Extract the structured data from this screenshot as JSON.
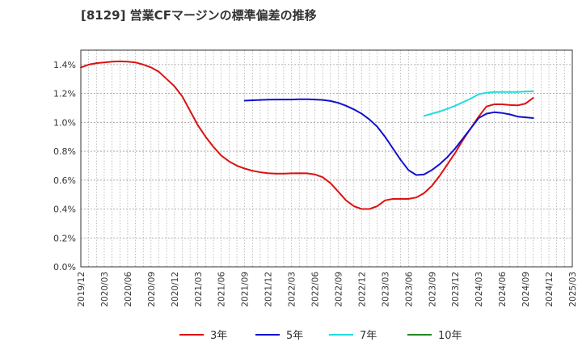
{
  "chart_data": {
    "type": "line",
    "title": "[8129]  営業CFマージンの標準偏差の推移",
    "xlabel": "",
    "ylabel": "",
    "ylim": [
      0.0,
      1.5
    ],
    "x_range": [
      "2019/12",
      "2025/03"
    ],
    "y_ticks": [
      "0.0%",
      "0.2%",
      "0.4%",
      "0.6%",
      "0.8%",
      "1.0%",
      "1.2%",
      "1.4%"
    ],
    "x_ticks": [
      "2019/12",
      "2020/03",
      "2020/06",
      "2020/09",
      "2020/12",
      "2021/03",
      "2021/06",
      "2021/09",
      "2021/12",
      "2022/03",
      "2022/06",
      "2022/09",
      "2022/12",
      "2023/03",
      "2023/06",
      "2023/09",
      "2023/12",
      "2024/03",
      "2024/06",
      "2024/09",
      "2024/12",
      "2025/03"
    ],
    "grid": true,
    "legend_position": "bottom",
    "series": [
      {
        "name": "3年",
        "color": "#dd1111",
        "points": [
          [
            "2019/12",
            1.38
          ],
          [
            "2020/01",
            1.4
          ],
          [
            "2020/02",
            1.41
          ],
          [
            "2020/03",
            1.415
          ],
          [
            "2020/04",
            1.42
          ],
          [
            "2020/05",
            1.422
          ],
          [
            "2020/06",
            1.42
          ],
          [
            "2020/07",
            1.415
          ],
          [
            "2020/08",
            1.4
          ],
          [
            "2020/09",
            1.38
          ],
          [
            "2020/10",
            1.35
          ],
          [
            "2020/11",
            1.3
          ],
          [
            "2020/12",
            1.25
          ],
          [
            "2021/01",
            1.18
          ],
          [
            "2021/02",
            1.08
          ],
          [
            "2021/03",
            0.98
          ],
          [
            "2021/04",
            0.9
          ],
          [
            "2021/05",
            0.83
          ],
          [
            "2021/06",
            0.77
          ],
          [
            "2021/07",
            0.73
          ],
          [
            "2021/08",
            0.7
          ],
          [
            "2021/09",
            0.68
          ],
          [
            "2021/10",
            0.665
          ],
          [
            "2021/11",
            0.655
          ],
          [
            "2021/12",
            0.648
          ],
          [
            "2022/01",
            0.645
          ],
          [
            "2022/02",
            0.645
          ],
          [
            "2022/03",
            0.647
          ],
          [
            "2022/04",
            0.648
          ],
          [
            "2022/05",
            0.647
          ],
          [
            "2022/06",
            0.64
          ],
          [
            "2022/07",
            0.62
          ],
          [
            "2022/08",
            0.58
          ],
          [
            "2022/09",
            0.52
          ],
          [
            "2022/10",
            0.46
          ],
          [
            "2022/11",
            0.42
          ],
          [
            "2022/12",
            0.4
          ],
          [
            "2023/01",
            0.4
          ],
          [
            "2023/02",
            0.42
          ],
          [
            "2023/03",
            0.46
          ],
          [
            "2023/04",
            0.47
          ],
          [
            "2023/05",
            0.47
          ],
          [
            "2023/06",
            0.47
          ],
          [
            "2023/07",
            0.48
          ],
          [
            "2023/08",
            0.51
          ],
          [
            "2023/09",
            0.56
          ],
          [
            "2023/10",
            0.63
          ],
          [
            "2023/11",
            0.71
          ],
          [
            "2023/12",
            0.79
          ],
          [
            "2024/01",
            0.88
          ],
          [
            "2024/02",
            0.96
          ],
          [
            "2024/03",
            1.04
          ],
          [
            "2024/04",
            1.11
          ],
          [
            "2024/05",
            1.125
          ],
          [
            "2024/06",
            1.125
          ],
          [
            "2024/07",
            1.12
          ],
          [
            "2024/08",
            1.118
          ],
          [
            "2024/09",
            1.13
          ],
          [
            "2024/10",
            1.17
          ]
        ]
      },
      {
        "name": "5年",
        "color": "#1111cc",
        "points": [
          [
            "2021/09",
            1.15
          ],
          [
            "2021/10",
            1.153
          ],
          [
            "2021/11",
            1.155
          ],
          [
            "2021/12",
            1.157
          ],
          [
            "2022/01",
            1.158
          ],
          [
            "2022/02",
            1.158
          ],
          [
            "2022/03",
            1.158
          ],
          [
            "2022/04",
            1.16
          ],
          [
            "2022/05",
            1.16
          ],
          [
            "2022/06",
            1.158
          ],
          [
            "2022/07",
            1.155
          ],
          [
            "2022/08",
            1.148
          ],
          [
            "2022/09",
            1.135
          ],
          [
            "2022/10",
            1.115
          ],
          [
            "2022/11",
            1.09
          ],
          [
            "2022/12",
            1.06
          ],
          [
            "2023/01",
            1.02
          ],
          [
            "2023/02",
            0.97
          ],
          [
            "2023/03",
            0.9
          ],
          [
            "2023/04",
            0.82
          ],
          [
            "2023/05",
            0.74
          ],
          [
            "2023/06",
            0.67
          ],
          [
            "2023/07",
            0.635
          ],
          [
            "2023/08",
            0.64
          ],
          [
            "2023/09",
            0.67
          ],
          [
            "2023/10",
            0.71
          ],
          [
            "2023/11",
            0.76
          ],
          [
            "2023/12",
            0.82
          ],
          [
            "2024/01",
            0.89
          ],
          [
            "2024/02",
            0.96
          ],
          [
            "2024/03",
            1.03
          ],
          [
            "2024/04",
            1.06
          ],
          [
            "2024/05",
            1.07
          ],
          [
            "2024/06",
            1.065
          ],
          [
            "2024/07",
            1.055
          ],
          [
            "2024/08",
            1.04
          ],
          [
            "2024/09",
            1.035
          ],
          [
            "2024/10",
            1.03
          ]
        ]
      },
      {
        "name": "7年",
        "color": "#22dddd",
        "points": [
          [
            "2023/08",
            1.045
          ],
          [
            "2023/09",
            1.06
          ],
          [
            "2023/10",
            1.075
          ],
          [
            "2023/11",
            1.095
          ],
          [
            "2023/12",
            1.115
          ],
          [
            "2024/01",
            1.14
          ],
          [
            "2024/02",
            1.165
          ],
          [
            "2024/03",
            1.195
          ],
          [
            "2024/04",
            1.205
          ],
          [
            "2024/05",
            1.21
          ],
          [
            "2024/06",
            1.21
          ],
          [
            "2024/07",
            1.21
          ],
          [
            "2024/08",
            1.21
          ],
          [
            "2024/09",
            1.213
          ],
          [
            "2024/10",
            1.215
          ]
        ]
      },
      {
        "name": "10年",
        "color": "#228822",
        "points": []
      }
    ]
  }
}
